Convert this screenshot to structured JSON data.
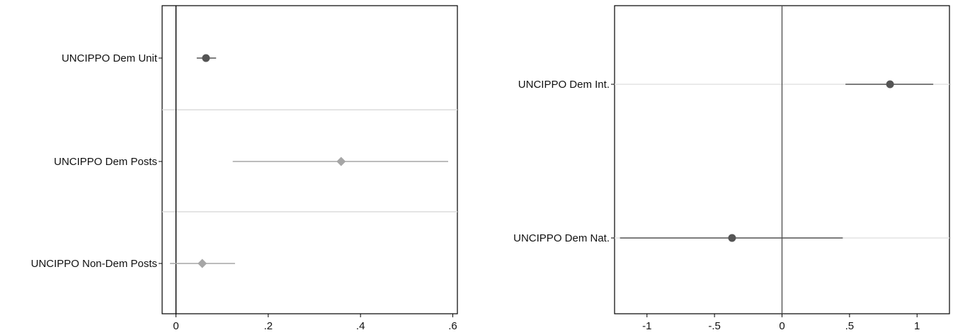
{
  "chart_data": [
    {
      "type": "scatter",
      "subtype": "coefficient-plot",
      "title": "",
      "xlabel": "",
      "ylabel": "",
      "xlim": [
        -0.03,
        0.61
      ],
      "xticks": [
        0,
        0.2,
        0.4,
        0.6
      ],
      "xtick_labels": [
        "0",
        ".2",
        ".4",
        ".6"
      ],
      "reference_line_x": 0,
      "row_separators": true,
      "items": [
        {
          "label": "UNCIPPO Dem Unit",
          "estimate": 0.065,
          "ci": [
            0.045,
            0.087
          ],
          "marker": "circle",
          "color": "#555555"
        },
        {
          "label": "UNCIPPO Dem Posts",
          "estimate": 0.358,
          "ci": [
            0.123,
            0.59
          ],
          "marker": "diamond",
          "color": "#a6a6a6"
        },
        {
          "label": "UNCIPPO Non-Dem Posts",
          "estimate": 0.057,
          "ci": [
            -0.013,
            0.128
          ],
          "marker": "diamond",
          "color": "#a6a6a6"
        }
      ]
    },
    {
      "type": "scatter",
      "subtype": "coefficient-plot",
      "title": "",
      "xlabel": "",
      "ylabel": "",
      "xlim": [
        -1.24,
        1.24
      ],
      "xticks": [
        -1,
        -0.5,
        0,
        0.5,
        1
      ],
      "xtick_labels": [
        "-1",
        "-.5",
        "0",
        ".5",
        "1"
      ],
      "reference_line_x": 0,
      "row_separators": false,
      "items": [
        {
          "label": "UNCIPPO Dem Int.",
          "estimate": 0.8,
          "ci": [
            0.47,
            1.12
          ],
          "marker": "circle",
          "color": "#555555"
        },
        {
          "label": "UNCIPPO Dem Nat.",
          "estimate": -0.37,
          "ci": [
            -1.2,
            0.45
          ],
          "marker": "circle",
          "color": "#555555"
        }
      ]
    }
  ]
}
